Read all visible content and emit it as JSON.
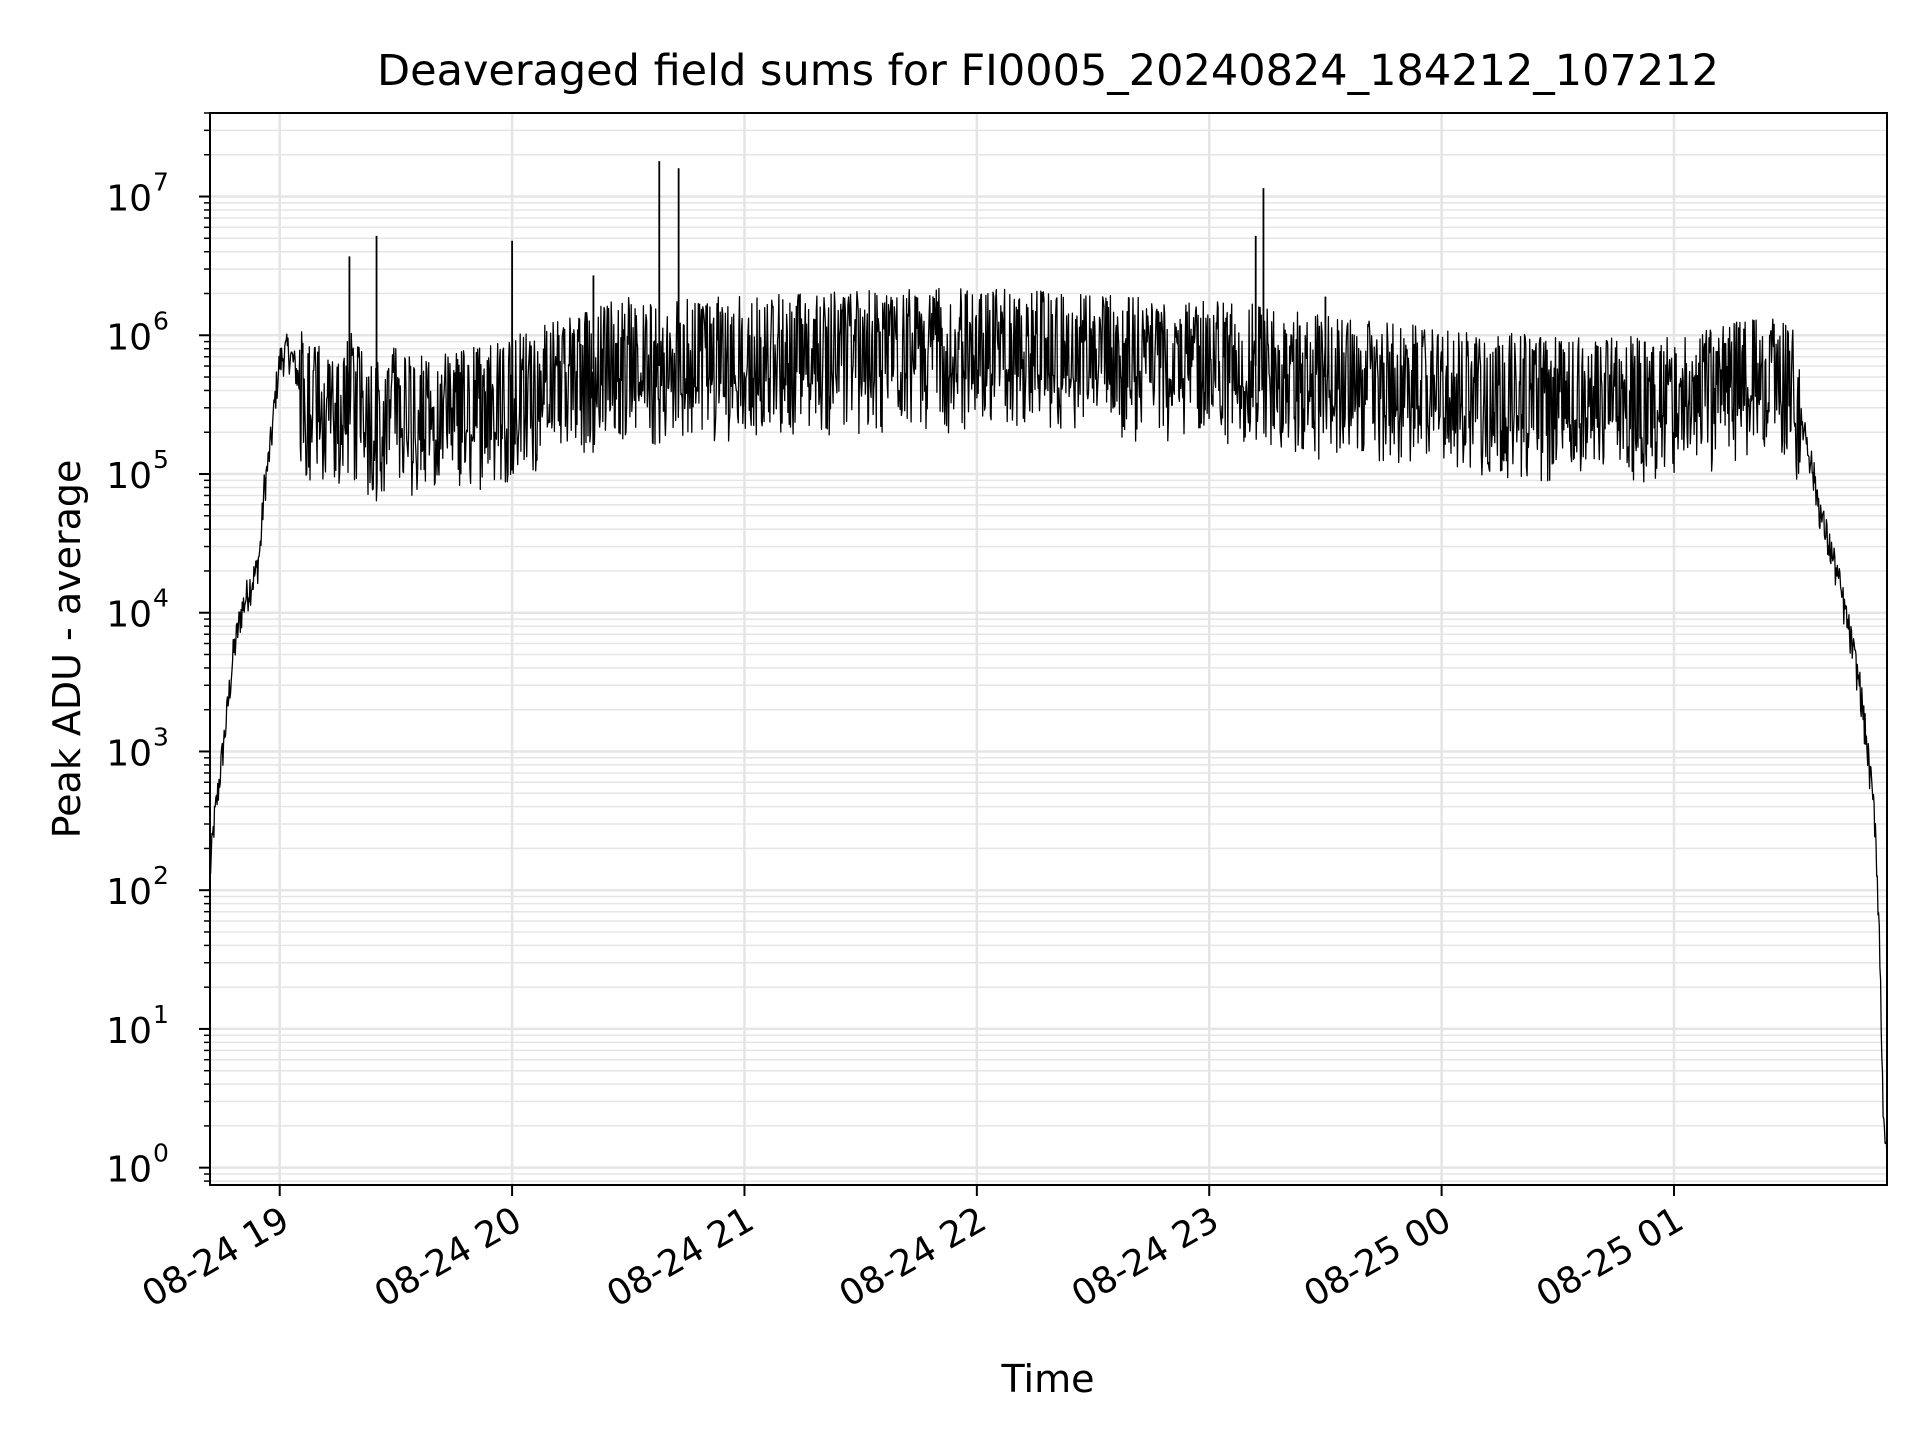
{
  "chart_data": {
    "type": "line",
    "title": "Deaveraged field sums for FI0005_20240824_184212_107212",
    "xlabel": "Time",
    "ylabel": "Peak ADU - average",
    "xscale": "time",
    "yscale": "log",
    "xlim": [
      "2024-08-24 18:42",
      "2024-08-25 01:55"
    ],
    "ylim": [
      0.75,
      40000000
    ],
    "x_ticks": [
      {
        "label": "08-24 19",
        "value": "2024-08-24 19:00"
      },
      {
        "label": "08-24 20",
        "value": "2024-08-24 20:00"
      },
      {
        "label": "08-24 21",
        "value": "2024-08-24 21:00"
      },
      {
        "label": "08-24 22",
        "value": "2024-08-24 22:00"
      },
      {
        "label": "08-24 23",
        "value": "2024-08-24 23:00"
      },
      {
        "label": "08-25 00",
        "value": "2024-08-25 00:00"
      },
      {
        "label": "08-25 01",
        "value": "2024-08-25 01:00"
      }
    ],
    "y_ticks": [
      {
        "base": "10",
        "exp": "0",
        "value": 1
      },
      {
        "base": "10",
        "exp": "1",
        "value": 10
      },
      {
        "base": "10",
        "exp": "2",
        "value": 100
      },
      {
        "base": "10",
        "exp": "3",
        "value": 1000
      },
      {
        "base": "10",
        "exp": "4",
        "value": 10000
      },
      {
        "base": "10",
        "exp": "5",
        "value": 100000
      },
      {
        "base": "10",
        "exp": "6",
        "value": 1000000
      },
      {
        "base": "10",
        "exp": "7",
        "value": 10000000
      }
    ],
    "grid": true,
    "minor_grid": true,
    "line_color": "#000000",
    "grid_color": "#e5e5e5",
    "series": [
      {
        "x": [
          "2024-08-24 18:42",
          "2024-08-24 18:43",
          "2024-08-24 18:44",
          "2024-08-24 18:46",
          "2024-08-24 18:48",
          "2024-08-24 18:50",
          "2024-08-24 18:52",
          "2024-08-24 18:54",
          "2024-08-24 18:55",
          "2024-08-24 18:56",
          "2024-08-24 18:57",
          "2024-08-24 18:58",
          "2024-08-24 18:59",
          "2024-08-24 19:00",
          "2024-08-24 19:02",
          "2024-08-24 19:04",
          "2024-08-24 19:06",
          "2024-08-24 19:08",
          "2024-08-24 19:10",
          "2024-08-24 19:12",
          "2024-08-24 19:15",
          "2024-08-24 19:18",
          "2024-08-24 19:20",
          "2024-08-24 19:25",
          "2024-08-24 19:30",
          "2024-08-24 19:40",
          "2024-08-24 19:50",
          "2024-08-24 20:00",
          "2024-08-24 20:15",
          "2024-08-24 20:30",
          "2024-08-24 20:38",
          "2024-08-24 20:45",
          "2024-08-24 21:00",
          "2024-08-24 21:30",
          "2024-08-24 22:00",
          "2024-08-24 22:30",
          "2024-08-24 23:00",
          "2024-08-24 23:13",
          "2024-08-24 23:30",
          "2024-08-25 00:00",
          "2024-08-25 00:30",
          "2024-08-25 01:00",
          "2024-08-25 01:10",
          "2024-08-25 01:20",
          "2024-08-25 01:25",
          "2024-08-25 01:30",
          "2024-08-25 01:34",
          "2024-08-25 01:38",
          "2024-08-25 01:42",
          "2024-08-25 01:45",
          "2024-08-25 01:48",
          "2024-08-25 01:50",
          "2024-08-25 01:52",
          "2024-08-25 01:53",
          "2024-08-25 01:54",
          "2024-08-25 01:55"
        ],
        "y": [
          130,
          300,
          500,
          1500,
          5000,
          10000,
          15000,
          20000,
          30000,
          80000,
          120000,
          200000,
          400000,
          650000,
          800000,
          600000,
          350000,
          300000,
          400000,
          300000,
          250000,
          400000,
          300000,
          250000,
          300000,
          250000,
          300000,
          350000,
          500000,
          700000,
          600000,
          650000,
          700000,
          750000,
          800000,
          700000,
          650000,
          600000,
          500000,
          400000,
          350000,
          350000,
          400000,
          500000,
          500000,
          450000,
          200000,
          50000,
          20000,
          8000,
          3000,
          1000,
          300,
          50,
          3,
          1
        ]
      }
    ],
    "spikes": [
      {
        "x": "2024-08-24 19:18",
        "y": 3700000
      },
      {
        "x": "2024-08-24 19:25",
        "y": 5200000
      },
      {
        "x": "2024-08-24 20:00",
        "y": 4800000
      },
      {
        "x": "2024-08-24 20:21",
        "y": 2700000
      },
      {
        "x": "2024-08-24 20:38",
        "y": 18000000
      },
      {
        "x": "2024-08-24 20:43",
        "y": 16000000
      },
      {
        "x": "2024-08-24 23:12",
        "y": 5200000
      },
      {
        "x": "2024-08-24 23:14",
        "y": 11500000
      },
      {
        "x": "2024-08-24 23:30",
        "y": 1900000
      }
    ]
  }
}
